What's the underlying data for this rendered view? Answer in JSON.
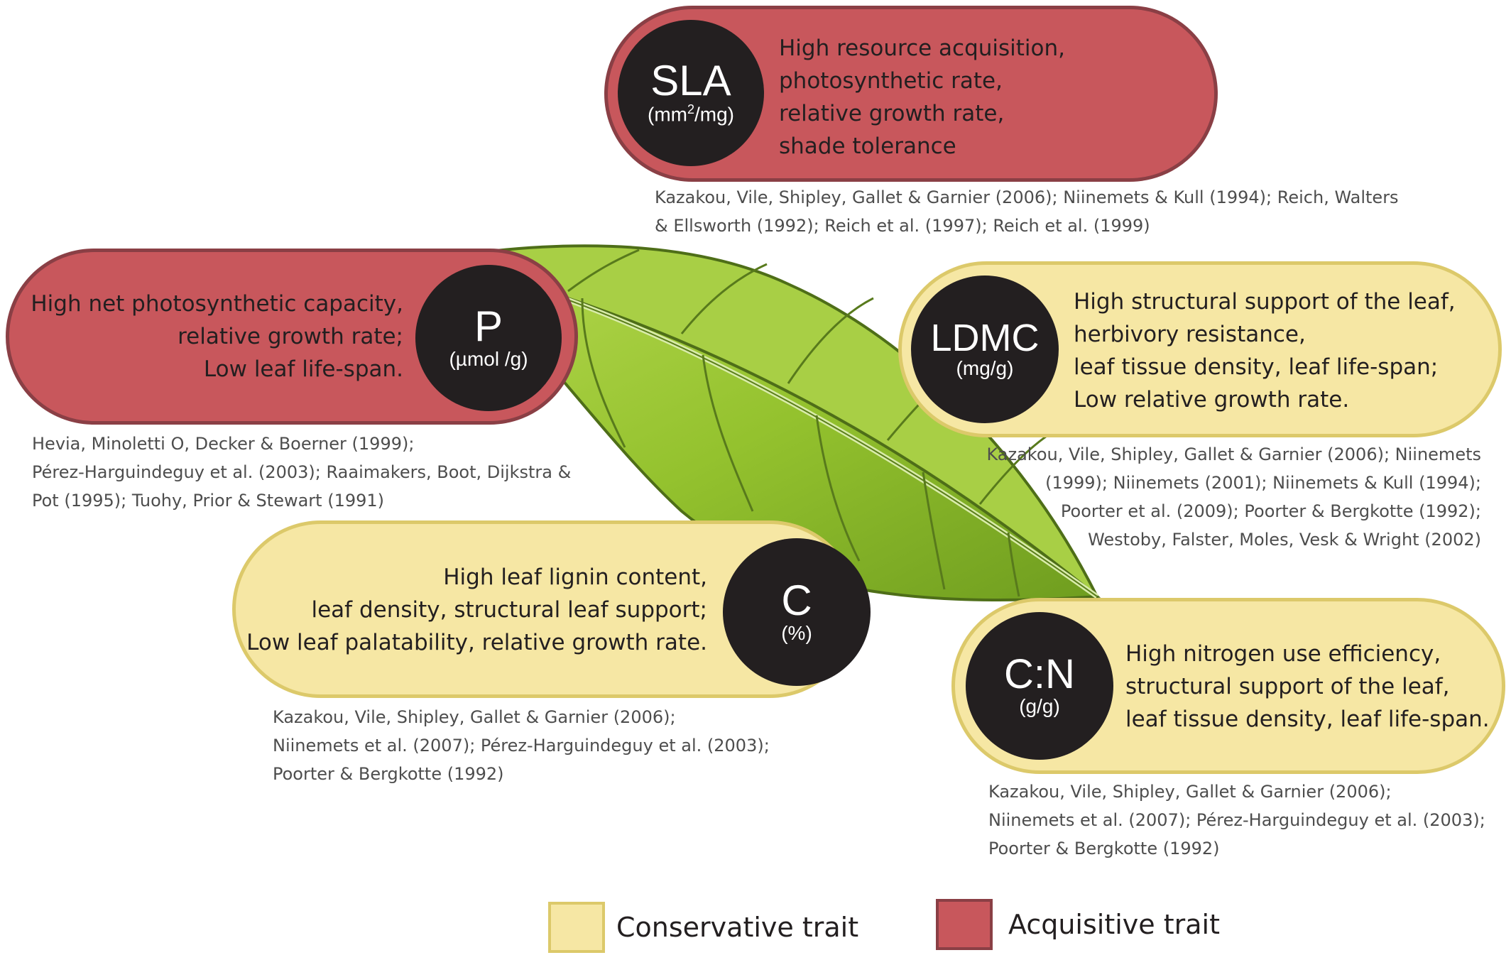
{
  "colors": {
    "acquisitive_fill": "#c8575c",
    "acquisitive_border": "#8a3f45",
    "conservative_fill": "#f6e7a4",
    "conservative_border": "#dcc96a",
    "circle": "#231f20",
    "leaf_green": "#8fbe2c"
  },
  "icons": {
    "leaf": "leaf-illustration"
  },
  "traits": {
    "sla": {
      "symbol": "SLA",
      "unit_pre": "(mm",
      "unit_sup": "2",
      "unit_post": "/mg)",
      "type": "acquisitive",
      "lines": [
        "High resource acquisition,",
        "photosynthetic rate,",
        "relative growth rate,",
        "shade tolerance"
      ],
      "refs": [
        "Kazakou, Vile, Shipley, Gallet & Garnier (2006); Niinemets & Kull (1994); Reich, Walters",
        "& Ellsworth (1992); Reich et al. (1997); Reich et al. (1999)"
      ]
    },
    "p": {
      "symbol": "P",
      "unit": "(µmol /g)",
      "type": "acquisitive",
      "lines": [
        "High net photosynthetic capacity,",
        "relative growth rate;",
        "Low leaf life-span."
      ],
      "refs": [
        "Hevia, Minoletti O, Decker & Boerner (1999);",
        "Pérez-Harguindeguy et al. (2003); Raaimakers, Boot, Dijkstra &",
        "Pot (1995); Tuohy, Prior & Stewart (1991)"
      ]
    },
    "ldmc": {
      "symbol": "LDMC",
      "unit": "(mg/g)",
      "type": "conservative",
      "lines": [
        "High structural support of the leaf,",
        "herbivory resistance,",
        "leaf tissue density, leaf life-span;",
        "Low relative growth rate."
      ],
      "refs": [
        "Kazakou, Vile, Shipley, Gallet & Garnier (2006); Niinemets",
        "(1999); Niinemets (2001); Niinemets  & Kull (1994);",
        "Poorter et al. (2009); Poorter & Bergkotte (1992);",
        "Westoby, Falster, Moles, Vesk & Wright (2002)"
      ]
    },
    "c": {
      "symbol": "C",
      "unit": "(%)",
      "type": "conservative",
      "lines": [
        "High leaf lignin content,",
        "leaf density, structural leaf support;",
        "Low leaf palatability, relative growth rate."
      ],
      "refs": [
        "Kazakou, Vile, Shipley, Gallet & Garnier (2006);",
        "Niinemets et al. (2007); Pérez-Harguindeguy et al. (2003);",
        "Poorter & Bergkotte (1992)"
      ]
    },
    "cn": {
      "symbol": "C:N",
      "unit": "(g/g)",
      "type": "conservative",
      "lines": [
        "High nitrogen use efficiency,",
        "structural support of the leaf,",
        "leaf tissue density, leaf life-span."
      ],
      "refs": [
        "Kazakou, Vile, Shipley, Gallet & Garnier (2006);",
        "Niinemets et al. (2007); Pérez-Harguindeguy et al. (2003);",
        "Poorter & Bergkotte (1992)"
      ]
    }
  },
  "legend": {
    "conservative": "Conservative trait",
    "acquisitive": "Acquisitive trait"
  }
}
